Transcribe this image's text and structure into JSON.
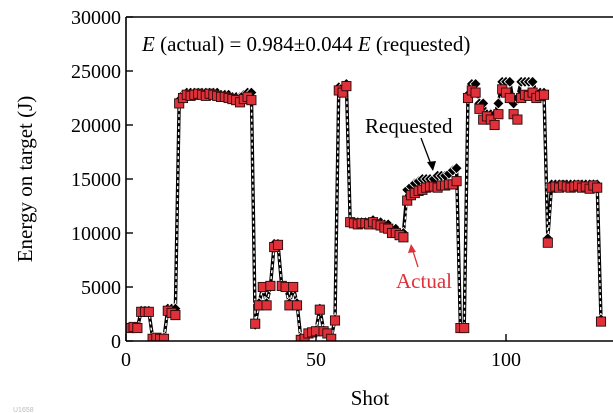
{
  "chart_data": {
    "type": "line",
    "title": "",
    "xlabel": "Shot",
    "ylabel": "Energy on target (J)",
    "xlim": [
      0,
      125
    ],
    "ylim": [
      0,
      30000
    ],
    "x_ticks": [
      "0",
      "50",
      "100"
    ],
    "y_ticks": [
      "0",
      "5000",
      "10000",
      "15000",
      "20000",
      "25000",
      "30000"
    ],
    "grid": false,
    "annotations": {
      "equation_prefix": "E",
      "equation_mid": " (actual) = 0.984±0.044 ",
      "equation_var": "E",
      "equation_suffix": " (requested)",
      "requested_label": "Requested",
      "actual_label": "Actual"
    },
    "corner_label": "U1658",
    "colors": {
      "actual": "#e0303a",
      "actual_annotation": "#e0303a",
      "requested": "#000000"
    },
    "series": [
      {
        "name": "Requested",
        "x": [
          1,
          2,
          3,
          4,
          5,
          6,
          7,
          8,
          9,
          10,
          11,
          12,
          13,
          14,
          15,
          16,
          17,
          18,
          19,
          20,
          21,
          22,
          23,
          24,
          25,
          26,
          27,
          28,
          29,
          30,
          31,
          32,
          33,
          34,
          35,
          36,
          37,
          38,
          39,
          40,
          41,
          42,
          43,
          44,
          45,
          46,
          47,
          48,
          49,
          50,
          51,
          52,
          53,
          54,
          55,
          56,
          57,
          58,
          59,
          60,
          61,
          62,
          63,
          64,
          65,
          66,
          67,
          68,
          69,
          70,
          71,
          72,
          73,
          74,
          75,
          76,
          77,
          78,
          79,
          80,
          81,
          82,
          83,
          84,
          85,
          86,
          87,
          88,
          89,
          90,
          91,
          92,
          93,
          94,
          95,
          96,
          97,
          98,
          99,
          100,
          101,
          102,
          103,
          104,
          105,
          106,
          107,
          108,
          109,
          110,
          111,
          112,
          113,
          114,
          115,
          116,
          117,
          118,
          119,
          120,
          121,
          122,
          123,
          124,
          125
        ],
        "values": [
          1200,
          1200,
          1200,
          2800,
          2800,
          2800,
          300,
          300,
          300,
          300,
          3000,
          3000,
          3000,
          22300,
          22800,
          23000,
          23000,
          23000,
          23000,
          23000,
          23000,
          23000,
          23000,
          23000,
          22800,
          22800,
          22800,
          22600,
          22600,
          22600,
          22800,
          23000,
          23000,
          1500,
          3500,
          5000,
          3500,
          5000,
          9000,
          9000,
          5000,
          5000,
          3500,
          5000,
          3500,
          300,
          300,
          800,
          800,
          1000,
          3000,
          1000,
          800,
          300,
          2000,
          23500,
          23500,
          23800,
          11000,
          11000,
          11000,
          11000,
          11000,
          11000,
          11200,
          11000,
          11000,
          10800,
          10800,
          10400,
          10400,
          10000,
          10000,
          14000,
          14300,
          14600,
          14800,
          15000,
          15000,
          15000,
          15000,
          15300,
          15300,
          15300,
          15500,
          15800,
          16000,
          1200,
          1200,
          22800,
          23800,
          23800,
          22000,
          22000,
          21000,
          21000,
          21000,
          22000,
          24000,
          24000,
          24000,
          22000,
          22500,
          24000,
          24000,
          24000,
          24000,
          23000,
          23000,
          23000,
          9500,
          14500,
          14500,
          14500,
          14500,
          14500,
          14500,
          14500,
          14500,
          14500,
          14500,
          14500,
          14500,
          14500,
          2000
        ]
      },
      {
        "name": "Actual",
        "x": [
          1,
          2,
          3,
          4,
          5,
          6,
          7,
          8,
          9,
          10,
          11,
          12,
          13,
          14,
          15,
          16,
          17,
          18,
          19,
          20,
          21,
          22,
          23,
          24,
          25,
          26,
          27,
          28,
          29,
          30,
          31,
          32,
          33,
          34,
          35,
          36,
          37,
          38,
          39,
          40,
          41,
          42,
          43,
          44,
          45,
          46,
          47,
          48,
          49,
          50,
          51,
          52,
          53,
          54,
          55,
          56,
          57,
          58,
          59,
          60,
          61,
          62,
          63,
          64,
          65,
          66,
          67,
          68,
          69,
          70,
          71,
          72,
          73,
          74,
          75,
          76,
          77,
          78,
          79,
          80,
          81,
          82,
          83,
          84,
          85,
          86,
          87,
          88,
          89,
          90,
          91,
          92,
          93,
          94,
          95,
          96,
          97,
          98,
          99,
          100,
          101,
          102,
          103,
          104,
          105,
          106,
          107,
          108,
          109,
          110,
          111,
          112,
          113,
          114,
          115,
          116,
          117,
          118,
          119,
          120,
          121,
          122,
          123,
          124,
          125
        ],
        "values": [
          1200,
          1300,
          1200,
          2700,
          2700,
          2700,
          200,
          300,
          200,
          200,
          2800,
          2600,
          2400,
          22000,
          22500,
          22800,
          22700,
          22800,
          22900,
          22800,
          22700,
          22900,
          22800,
          22700,
          22600,
          22600,
          22500,
          22400,
          22300,
          22100,
          22400,
          22600,
          22300,
          1600,
          3300,
          5000,
          3300,
          5100,
          8700,
          8900,
          5100,
          5000,
          3300,
          5000,
          3300,
          100,
          200,
          700,
          800,
          900,
          2900,
          900,
          700,
          200,
          1900,
          23200,
          23000,
          23600,
          11000,
          10900,
          10800,
          10900,
          10900,
          10800,
          11000,
          10800,
          10700,
          10500,
          10400,
          10000,
          10000,
          9800,
          9600,
          13000,
          13500,
          13700,
          13900,
          14000,
          14200,
          14300,
          14300,
          14200,
          14400,
          14400,
          14500,
          14500,
          14800,
          1200,
          1200,
          22500,
          23200,
          23000,
          21500,
          20500,
          20800,
          20500,
          20000,
          21000,
          23300,
          23000,
          22500,
          21000,
          20500,
          22500,
          22800,
          22700,
          23000,
          22500,
          22700,
          22800,
          9100,
          14200,
          14300,
          14200,
          14400,
          14300,
          14200,
          14300,
          14400,
          14200,
          14300,
          14100,
          14400,
          14200,
          1800
        ]
      }
    ]
  }
}
